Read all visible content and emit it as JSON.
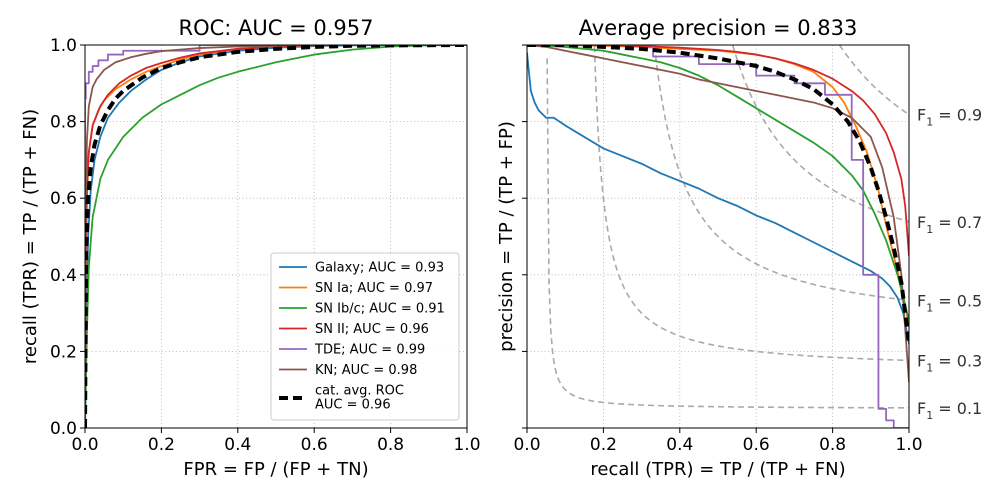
{
  "chart_data": [
    {
      "type": "line",
      "title": "ROC: AUC = 0.957",
      "xlabel": "FPR = FP / (FP + TN)",
      "ylabel": "recall (TPR) = TP / (TP + FN)",
      "xlim": [
        0,
        1
      ],
      "ylim": [
        0,
        1
      ],
      "xticks": [
        "0.0",
        "0.2",
        "0.4",
        "0.6",
        "0.8",
        "1.0"
      ],
      "yticks": [
        "0.0",
        "0.2",
        "0.4",
        "0.6",
        "0.8",
        "1.0"
      ],
      "grid": true,
      "legend_position": "lower-right",
      "series": [
        {
          "name": "Galaxy; AUC = 0.93",
          "color": "#1f77b4",
          "style": "solid",
          "x": [
            0,
            0.003,
            0.008,
            0.015,
            0.025,
            0.04,
            0.06,
            0.09,
            0.12,
            0.16,
            0.2,
            0.25,
            0.3,
            0.4,
            0.5,
            0.6,
            0.7,
            0.8,
            1.0
          ],
          "y": [
            0,
            0.25,
            0.5,
            0.62,
            0.7,
            0.76,
            0.81,
            0.85,
            0.88,
            0.91,
            0.935,
            0.955,
            0.97,
            0.985,
            0.993,
            0.997,
            0.999,
            1.0,
            1.0
          ]
        },
        {
          "name": "SN Ia; AUC = 0.97",
          "color": "#ff7f0e",
          "style": "solid",
          "x": [
            0,
            0.002,
            0.005,
            0.01,
            0.02,
            0.035,
            0.05,
            0.08,
            0.12,
            0.16,
            0.2,
            0.25,
            0.3,
            0.4,
            0.5,
            0.6,
            0.7,
            1.0
          ],
          "y": [
            0,
            0.4,
            0.6,
            0.72,
            0.79,
            0.83,
            0.855,
            0.885,
            0.91,
            0.93,
            0.945,
            0.962,
            0.975,
            0.99,
            0.996,
            0.999,
            1.0,
            1.0
          ]
        },
        {
          "name": "SN Ib/c; AUC = 0.91",
          "color": "#2ca02c",
          "style": "solid",
          "x": [
            0,
            0.005,
            0.01,
            0.02,
            0.04,
            0.06,
            0.1,
            0.15,
            0.2,
            0.25,
            0.3,
            0.35,
            0.4,
            0.5,
            0.6,
            0.7,
            0.8,
            0.9,
            1.0
          ],
          "y": [
            0,
            0.25,
            0.42,
            0.55,
            0.65,
            0.7,
            0.76,
            0.81,
            0.845,
            0.87,
            0.895,
            0.915,
            0.93,
            0.955,
            0.975,
            0.988,
            0.996,
            0.999,
            1.0
          ]
        },
        {
          "name": "SN II; AUC = 0.96",
          "color": "#d62728",
          "style": "solid",
          "x": [
            0,
            0.002,
            0.005,
            0.01,
            0.02,
            0.04,
            0.06,
            0.09,
            0.12,
            0.16,
            0.2,
            0.25,
            0.3,
            0.4,
            0.5,
            0.6,
            0.7,
            1.0
          ],
          "y": [
            0,
            0.45,
            0.62,
            0.72,
            0.79,
            0.84,
            0.87,
            0.9,
            0.92,
            0.94,
            0.953,
            0.967,
            0.978,
            0.99,
            0.996,
            0.999,
            1.0,
            1.0
          ]
        },
        {
          "name": "TDE; AUC = 0.99",
          "color": "#9467bd",
          "style": "solid",
          "x": [
            0,
            0.0,
            0.002,
            0.002,
            0.01,
            0.01,
            0.02,
            0.02,
            0.035,
            0.035,
            0.06,
            0.06,
            0.1,
            0.1,
            0.3,
            0.3,
            1.0
          ],
          "y": [
            0,
            0.86,
            0.86,
            0.9,
            0.9,
            0.93,
            0.93,
            0.945,
            0.945,
            0.96,
            0.96,
            0.975,
            0.975,
            0.985,
            0.985,
            1.0,
            1.0
          ]
        },
        {
          "name": "KN; AUC = 0.98",
          "color": "#8c564b",
          "style": "solid",
          "x": [
            0,
            0.002,
            0.005,
            0.01,
            0.02,
            0.03,
            0.05,
            0.08,
            0.12,
            0.16,
            0.2,
            0.3,
            0.4,
            0.5,
            0.6,
            1.0
          ],
          "y": [
            0,
            0.55,
            0.75,
            0.84,
            0.89,
            0.91,
            0.935,
            0.955,
            0.968,
            0.977,
            0.984,
            0.992,
            0.996,
            0.998,
            1.0,
            1.0
          ]
        },
        {
          "name": "cat. avg. ROC\nAUC = 0.96",
          "color": "#000000",
          "style": "dashed-thick",
          "x": [
            0,
            0.003,
            0.008,
            0.015,
            0.025,
            0.04,
            0.06,
            0.08,
            0.1,
            0.15,
            0.2,
            0.25,
            0.3,
            0.4,
            0.5,
            0.6,
            0.7,
            0.8,
            1.0
          ],
          "y": [
            0,
            0.45,
            0.6,
            0.68,
            0.74,
            0.79,
            0.83,
            0.86,
            0.88,
            0.915,
            0.94,
            0.955,
            0.968,
            0.982,
            0.99,
            0.995,
            0.998,
            0.999,
            1.0
          ]
        }
      ]
    },
    {
      "type": "line",
      "title": "Average precision = 0.833",
      "xlabel": "recall (TPR) = TP / (TP + FN)",
      "ylabel": "precision = TP / (TP + FP)",
      "xlim": [
        0,
        1
      ],
      "ylim": [
        0,
        1
      ],
      "xticks": [
        "0.0",
        "0.2",
        "0.4",
        "0.6",
        "0.8",
        "1.0"
      ],
      "grid": true,
      "f1_isolines": [
        {
          "label": "F",
          "sub": "1",
          "value": "= 0.1",
          "f": 0.1
        },
        {
          "label": "F",
          "sub": "1",
          "value": "= 0.3",
          "f": 0.3
        },
        {
          "label": "F",
          "sub": "1",
          "value": "= 0.5",
          "f": 0.5
        },
        {
          "label": "F",
          "sub": "1",
          "value": "= 0.7",
          "f": 0.7
        },
        {
          "label": "F",
          "sub": "1",
          "value": "= 0.9",
          "f": 0.9
        }
      ],
      "series": [
        {
          "name": "Galaxy",
          "color": "#1f77b4",
          "x": [
            0.0,
            0.005,
            0.01,
            0.02,
            0.03,
            0.05,
            0.07,
            0.1,
            0.15,
            0.2,
            0.25,
            0.3,
            0.35,
            0.4,
            0.45,
            0.5,
            0.55,
            0.6,
            0.65,
            0.7,
            0.75,
            0.8,
            0.85,
            0.9,
            0.93,
            0.95,
            0.97,
            0.985,
            1.0
          ],
          "y": [
            0.98,
            0.93,
            0.88,
            0.85,
            0.83,
            0.81,
            0.81,
            0.79,
            0.76,
            0.73,
            0.71,
            0.69,
            0.665,
            0.645,
            0.625,
            0.6,
            0.58,
            0.555,
            0.535,
            0.51,
            0.485,
            0.46,
            0.435,
            0.41,
            0.39,
            0.37,
            0.34,
            0.3,
            0.22
          ]
        },
        {
          "name": "SN Ia",
          "color": "#ff7f0e",
          "x": [
            0,
            0.1,
            0.2,
            0.3,
            0.4,
            0.5,
            0.55,
            0.6,
            0.65,
            0.7,
            0.75,
            0.8,
            0.83,
            0.86,
            0.89,
            0.92,
            0.94,
            0.96,
            0.98,
            0.99,
            1.0
          ],
          "y": [
            1.0,
            1.0,
            0.998,
            0.995,
            0.99,
            0.985,
            0.98,
            0.975,
            0.965,
            0.95,
            0.93,
            0.89,
            0.85,
            0.79,
            0.72,
            0.62,
            0.53,
            0.45,
            0.37,
            0.32,
            0.27
          ]
        },
        {
          "name": "SN Ib/c",
          "color": "#2ca02c",
          "x": [
            0,
            0.05,
            0.1,
            0.15,
            0.2,
            0.25,
            0.3,
            0.35,
            0.4,
            0.45,
            0.5,
            0.55,
            0.6,
            0.65,
            0.7,
            0.75,
            0.8,
            0.85,
            0.88,
            0.91,
            0.94,
            0.97,
            1.0
          ],
          "y": [
            1.0,
            0.998,
            0.995,
            0.99,
            0.985,
            0.975,
            0.965,
            0.955,
            0.94,
            0.92,
            0.895,
            0.865,
            0.835,
            0.805,
            0.775,
            0.745,
            0.71,
            0.66,
            0.62,
            0.56,
            0.49,
            0.4,
            0.28
          ]
        },
        {
          "name": "SN II",
          "color": "#d62728",
          "x": [
            0,
            0.1,
            0.2,
            0.3,
            0.4,
            0.5,
            0.55,
            0.6,
            0.65,
            0.7,
            0.75,
            0.8,
            0.85,
            0.88,
            0.91,
            0.94,
            0.96,
            0.98,
            0.99,
            1.0
          ],
          "y": [
            1.0,
            1.0,
            0.999,
            0.997,
            0.993,
            0.987,
            0.982,
            0.975,
            0.965,
            0.952,
            0.935,
            0.912,
            0.88,
            0.855,
            0.82,
            0.77,
            0.72,
            0.65,
            0.58,
            0.45
          ]
        },
        {
          "name": "TDE",
          "color": "#9467bd",
          "x": [
            0,
            0.33,
            0.33,
            0.45,
            0.45,
            0.6,
            0.6,
            0.7,
            0.7,
            0.78,
            0.78,
            0.85,
            0.85,
            0.88,
            0.88,
            0.92,
            0.92,
            0.94,
            0.94,
            0.96,
            0.96,
            1.0
          ],
          "y": [
            1.0,
            1.0,
            0.97,
            0.97,
            0.95,
            0.95,
            0.92,
            0.92,
            0.9,
            0.9,
            0.87,
            0.87,
            0.7,
            0.7,
            0.4,
            0.4,
            0.05,
            0.05,
            0.02,
            0.02,
            0.0,
            0.0
          ]
        },
        {
          "name": "KN",
          "color": "#8c564b",
          "x": [
            0,
            0.05,
            0.1,
            0.15,
            0.2,
            0.25,
            0.3,
            0.35,
            0.4,
            0.45,
            0.5,
            0.55,
            0.6,
            0.65,
            0.7,
            0.75,
            0.8,
            0.85,
            0.9,
            0.93,
            0.96,
            0.98,
            1.0
          ],
          "y": [
            1.0,
            0.995,
            0.985,
            0.975,
            0.965,
            0.955,
            0.945,
            0.935,
            0.925,
            0.91,
            0.9,
            0.89,
            0.88,
            0.87,
            0.86,
            0.85,
            0.835,
            0.81,
            0.76,
            0.68,
            0.55,
            0.4,
            0.12
          ]
        },
        {
          "name": "cat. avg.",
          "color": "#000000",
          "style": "dashed-thick",
          "x": [
            0,
            0.1,
            0.2,
            0.3,
            0.4,
            0.5,
            0.55,
            0.6,
            0.65,
            0.7,
            0.75,
            0.8,
            0.84,
            0.87,
            0.9,
            0.92,
            0.94,
            0.96,
            0.98,
            1.0
          ],
          "y": [
            1.0,
            1.0,
            0.995,
            0.99,
            0.98,
            0.965,
            0.955,
            0.945,
            0.93,
            0.91,
            0.885,
            0.845,
            0.8,
            0.75,
            0.68,
            0.62,
            0.55,
            0.47,
            0.38,
            0.22
          ]
        }
      ]
    }
  ]
}
